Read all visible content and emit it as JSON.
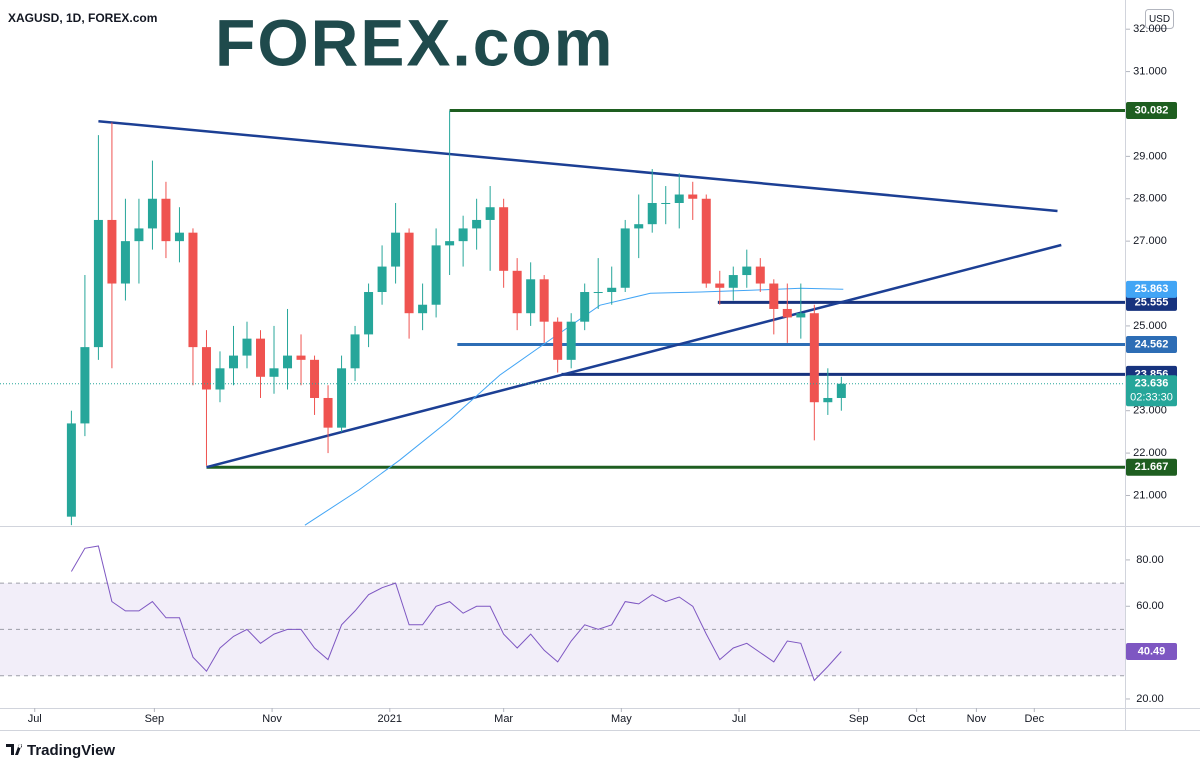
{
  "logo": "FOREX.com",
  "footer": "TradingView",
  "chart_data": [
    {
      "type": "candlestick",
      "title": "XAGUSD, 1D, FOREX.com",
      "unit": "USD",
      "up_color": "#26a69a",
      "down_color": "#ef5350",
      "x": [
        "2020-07-20",
        "2020-07-27",
        "2020-08-03",
        "2020-08-10",
        "2020-08-17",
        "2020-08-24",
        "2020-08-31",
        "2020-09-07",
        "2020-09-14",
        "2020-09-21",
        "2020-09-28",
        "2020-10-05",
        "2020-10-12",
        "2020-10-19",
        "2020-10-26",
        "2020-11-02",
        "2020-11-09",
        "2020-11-16",
        "2020-11-23",
        "2020-11-30",
        "2020-12-07",
        "2020-12-14",
        "2020-12-21",
        "2020-12-28",
        "2021-01-04",
        "2021-01-11",
        "2021-01-18",
        "2021-01-25",
        "2021-02-01",
        "2021-02-08",
        "2021-02-15",
        "2021-02-22",
        "2021-03-01",
        "2021-03-08",
        "2021-03-15",
        "2021-03-22",
        "2021-03-29",
        "2021-04-05",
        "2021-04-12",
        "2021-04-19",
        "2021-04-26",
        "2021-05-03",
        "2021-05-10",
        "2021-05-17",
        "2021-05-24",
        "2021-05-31",
        "2021-06-07",
        "2021-06-14",
        "2021-06-21",
        "2021-06-28",
        "2021-07-05",
        "2021-07-12",
        "2021-07-19",
        "2021-07-26",
        "2021-08-02",
        "2021-08-09",
        "2021-08-16",
        "2021-08-23"
      ],
      "open": [
        20.5,
        22.7,
        24.5,
        27.5,
        26.0,
        27.0,
        27.3,
        28.0,
        27.0,
        27.2,
        24.5,
        23.5,
        24.0,
        24.3,
        24.7,
        23.8,
        24.0,
        24.3,
        24.2,
        23.3,
        22.6,
        24.0,
        24.8,
        25.8,
        26.4,
        27.2,
        25.3,
        25.5,
        26.9,
        27.0,
        27.3,
        27.5,
        27.8,
        26.3,
        25.3,
        26.1,
        25.1,
        24.2,
        25.1,
        25.8,
        25.8,
        25.9,
        27.3,
        27.4,
        27.9,
        27.9,
        28.1,
        28.0,
        26.0,
        25.9,
        26.2,
        26.4,
        26.0,
        25.4,
        25.2,
        25.3,
        23.2,
        23.3
      ],
      "high": [
        23.0,
        26.2,
        29.5,
        29.8,
        28.0,
        28.0,
        28.9,
        28.4,
        27.8,
        27.3,
        24.9,
        24.4,
        25.0,
        25.1,
        24.9,
        25.0,
        25.4,
        24.8,
        24.3,
        23.6,
        24.3,
        25.0,
        26.0,
        26.9,
        27.9,
        27.3,
        26.0,
        27.3,
        30.082,
        27.6,
        28.0,
        28.3,
        28.0,
        26.6,
        26.5,
        26.2,
        25.2,
        25.3,
        26.0,
        26.6,
        26.4,
        27.5,
        28.1,
        28.7,
        28.3,
        28.6,
        28.4,
        28.1,
        26.3,
        26.4,
        26.8,
        26.6,
        26.1,
        26.0,
        26.0,
        25.5,
        24.0,
        23.8
      ],
      "low": [
        20.3,
        22.4,
        24.2,
        24.0,
        25.6,
        26.0,
        26.8,
        26.6,
        26.5,
        23.6,
        21.7,
        23.2,
        23.6,
        24.0,
        23.3,
        23.4,
        23.5,
        23.6,
        22.9,
        22.0,
        22.5,
        23.7,
        24.5,
        25.5,
        26.0,
        24.7,
        24.9,
        25.2,
        26.2,
        26.4,
        26.8,
        26.3,
        25.9,
        24.9,
        25.0,
        24.6,
        23.9,
        24.0,
        24.9,
        25.4,
        25.5,
        25.8,
        26.6,
        27.2,
        27.4,
        27.3,
        27.5,
        25.9,
        25.5,
        25.6,
        25.9,
        25.8,
        24.8,
        24.6,
        24.7,
        22.3,
        22.9,
        23.0
      ],
      "close": [
        22.7,
        24.5,
        27.5,
        26.0,
        27.0,
        27.3,
        28.0,
        27.0,
        27.2,
        24.5,
        23.5,
        24.0,
        24.3,
        24.7,
        23.8,
        24.0,
        24.3,
        24.2,
        23.3,
        22.6,
        24.0,
        24.8,
        25.8,
        26.4,
        27.2,
        25.3,
        25.5,
        26.9,
        27.0,
        27.3,
        27.5,
        27.8,
        26.3,
        25.3,
        26.1,
        25.1,
        24.2,
        25.1,
        25.8,
        25.8,
        25.9,
        27.3,
        27.4,
        27.9,
        27.9,
        28.1,
        28.0,
        26.0,
        25.9,
        26.2,
        26.4,
        26.0,
        25.4,
        25.2,
        25.3,
        23.2,
        23.3,
        23.636
      ],
      "countdown": "02:33:30",
      "xlim": [
        "2020-06-13",
        "2022-01-17"
      ],
      "ylim": [
        20.28,
        32.5
      ],
      "yticks": [
        {
          "value": 21,
          "label": "21.000"
        },
        {
          "value": 22,
          "label": "22.000"
        },
        {
          "value": 23,
          "label": "23.000"
        },
        {
          "value": 25,
          "label": "25.000"
        },
        {
          "value": 27,
          "label": "27.000"
        },
        {
          "value": 28,
          "label": "28.000"
        },
        {
          "value": 29,
          "label": "29.000"
        },
        {
          "value": 31,
          "label": "31.000"
        },
        {
          "value": 32,
          "label": "32.000"
        }
      ],
      "moving_average": {
        "color": "#42a5f5",
        "x": [
          "2020-11-18",
          "2020-12-16",
          "2021-01-06",
          "2021-02-01",
          "2021-02-27",
          "2021-03-25",
          "2021-04-20",
          "2021-05-16",
          "2021-06-11",
          "2021-07-07",
          "2021-08-02",
          "2021-08-24"
        ],
        "values": [
          20.3,
          21.13,
          21.83,
          22.78,
          23.84,
          24.67,
          25.49,
          25.77,
          25.8,
          25.84,
          25.89,
          25.863
        ]
      },
      "levels": [
        {
          "value": 30.082,
          "start": "2021-02-01",
          "color": "#1e5e20"
        },
        {
          "value": 25.555,
          "start": "2021-06-20",
          "color": "#17337e"
        },
        {
          "value": 24.562,
          "start": "2021-02-05",
          "color": "#2d6db5"
        },
        {
          "value": 23.856,
          "start": "2021-03-31",
          "color": "#17337e"
        },
        {
          "value": 21.667,
          "start": "2020-09-28",
          "color": "#1e5e20"
        }
      ],
      "trendlines": [
        {
          "x": [
            "2020-08-03",
            "2021-12-13"
          ],
          "values": [
            29.83,
            27.71
          ],
          "color": "#1c3f94"
        },
        {
          "x": [
            "2020-09-28",
            "2021-12-15"
          ],
          "values": [
            21.667,
            26.91
          ],
          "color": "#1c3f94"
        }
      ]
    },
    {
      "type": "line",
      "color": "#7e57c2",
      "x": [
        "2020-07-20",
        "2020-07-27",
        "2020-08-03",
        "2020-08-10",
        "2020-08-17",
        "2020-08-24",
        "2020-08-31",
        "2020-09-07",
        "2020-09-14",
        "2020-09-21",
        "2020-09-28",
        "2020-10-05",
        "2020-10-12",
        "2020-10-19",
        "2020-10-26",
        "2020-11-02",
        "2020-11-09",
        "2020-11-16",
        "2020-11-23",
        "2020-11-30",
        "2020-12-07",
        "2020-12-14",
        "2020-12-21",
        "2020-12-28",
        "2021-01-04",
        "2021-01-11",
        "2021-01-18",
        "2021-01-25",
        "2021-02-01",
        "2021-02-08",
        "2021-02-15",
        "2021-02-22",
        "2021-03-01",
        "2021-03-08",
        "2021-03-15",
        "2021-03-22",
        "2021-03-29",
        "2021-04-05",
        "2021-04-12",
        "2021-04-19",
        "2021-04-26",
        "2021-05-03",
        "2021-05-10",
        "2021-05-17",
        "2021-05-24",
        "2021-05-31",
        "2021-06-07",
        "2021-06-14",
        "2021-06-21",
        "2021-06-28",
        "2021-07-05",
        "2021-07-12",
        "2021-07-19",
        "2021-07-26",
        "2021-08-02",
        "2021-08-09",
        "2021-08-16",
        "2021-08-23"
      ],
      "values": [
        75,
        85,
        86,
        62,
        58,
        58,
        62,
        55,
        55,
        38,
        32,
        42,
        47,
        50,
        44,
        48,
        50,
        50,
        42,
        37,
        52,
        58,
        65,
        68,
        70,
        52,
        52,
        60,
        62,
        57,
        60,
        60,
        48,
        42,
        48,
        41,
        36,
        45,
        52,
        50,
        52,
        62,
        61,
        65,
        62,
        64,
        60,
        48,
        37,
        42,
        44,
        40,
        36,
        45,
        44,
        28,
        34,
        40.49
      ],
      "band": {
        "lower": 30,
        "middle": 50,
        "upper": 70
      },
      "xlim": [
        "2020-06-13",
        "2022-01-17"
      ],
      "xticks": [
        {
          "value": "2020-07-01",
          "label": "Jul"
        },
        {
          "value": "2020-09-01",
          "label": "Sep"
        },
        {
          "value": "2020-11-01",
          "label": "Nov"
        },
        {
          "value": "2021-01-01",
          "label": "2021"
        },
        {
          "value": "2021-03-01",
          "label": "Mar"
        },
        {
          "value": "2021-05-01",
          "label": "May"
        },
        {
          "value": "2021-07-01",
          "label": "Jul"
        },
        {
          "value": "2021-09-01",
          "label": "Sep"
        },
        {
          "value": "2021-10-01",
          "label": "Oct"
        },
        {
          "value": "2021-11-01",
          "label": "Nov"
        },
        {
          "value": "2021-12-01",
          "label": "Dec"
        }
      ],
      "ylim": [
        16.1,
        94.2
      ],
      "yticks": [
        {
          "value": 20,
          "label": "20.00"
        },
        {
          "value": 40,
          "label": "40.00"
        },
        {
          "value": 60,
          "label": "60.00"
        },
        {
          "value": 80,
          "label": "80.00"
        }
      ]
    }
  ]
}
